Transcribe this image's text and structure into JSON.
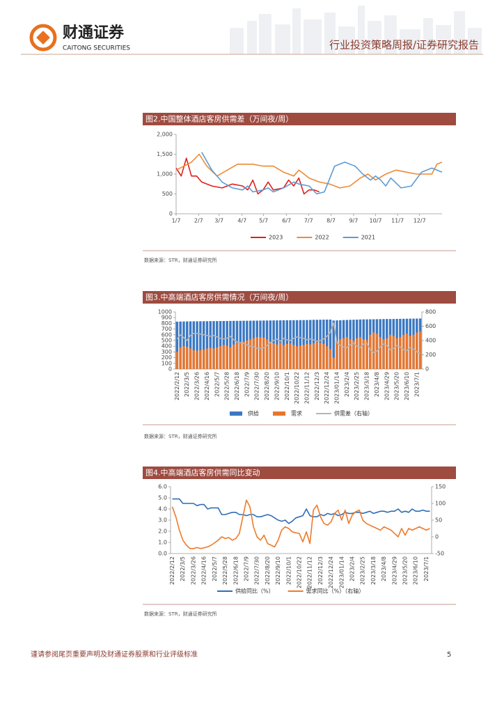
{
  "header": {
    "company_cn": "财通证券",
    "company_en": "CAITONG SECURITIES",
    "report_type": "行业投资策略周报/证券研究报告"
  },
  "chart_data": [
    {
      "type": "line",
      "title": "图2.中国整体酒店客房供需差（万间夜/周）",
      "source": "数据来源：STR，财通证券研究所",
      "xlim": [
        0,
        52
      ],
      "xticks": [
        {
          "value": 0,
          "label": "1/7"
        },
        {
          "value": 4.4,
          "label": "2/7"
        },
        {
          "value": 8.4,
          "label": "3/7"
        },
        {
          "value": 12.9,
          "label": "4/7"
        },
        {
          "value": 17.1,
          "label": "5/7"
        },
        {
          "value": 21.6,
          "label": "6/7"
        },
        {
          "value": 25.9,
          "label": "7/7"
        },
        {
          "value": 30.3,
          "label": "8/7"
        },
        {
          "value": 34.7,
          "label": "9/7"
        },
        {
          "value": 39,
          "label": "10/7"
        },
        {
          "value": 43.3,
          "label": "11/7"
        },
        {
          "value": 47.6,
          "label": "12/7"
        }
      ],
      "ylim": [
        0,
        2000
      ],
      "yticks": [
        0,
        500,
        {
          "value": 1000,
          "label": "1,000"
        },
        {
          "value": 1500,
          "label": "1,500"
        },
        {
          "value": 2000,
          "label": "2,000"
        }
      ],
      "series": [
        {
          "name": "2023",
          "color": "#e0201b",
          "x": [
            0,
            1,
            2,
            3,
            4,
            5,
            7,
            9,
            11,
            13,
            14,
            15,
            16,
            17,
            18,
            19,
            21,
            22,
            23,
            24,
            25,
            26,
            27,
            28
          ],
          "values": [
            1150,
            950,
            1400,
            950,
            950,
            800,
            700,
            650,
            750,
            700,
            600,
            850,
            500,
            600,
            800,
            600,
            650,
            850,
            700,
            900,
            500,
            600,
            600,
            550
          ]
        },
        {
          "name": "2022",
          "color": "#ee8a35",
          "x": [
            0,
            3,
            4.5,
            6,
            8,
            10,
            12,
            15,
            17,
            19,
            21,
            23,
            24,
            26,
            28,
            30,
            32,
            34,
            36,
            37.5,
            39,
            41,
            43,
            45,
            47,
            50,
            51,
            52
          ],
          "values": [
            1100,
            1300,
            1500,
            1200,
            950,
            1100,
            1250,
            1250,
            1200,
            1200,
            1050,
            950,
            1100,
            900,
            800,
            750,
            650,
            700,
            900,
            1000,
            850,
            1000,
            1100,
            1050,
            1000,
            1000,
            1250,
            1300
          ]
        },
        {
          "name": "2021",
          "color": "#5b9bd5",
          "x": [
            5,
            7,
            9,
            11,
            13,
            14,
            15,
            17,
            18,
            19,
            21,
            23,
            24,
            26,
            27.5,
            29,
            31,
            33,
            35,
            36.5,
            38,
            39,
            40,
            41,
            42,
            44,
            46,
            48,
            50,
            52
          ],
          "values": [
            1550,
            1100,
            800,
            650,
            600,
            700,
            550,
            600,
            650,
            550,
            650,
            800,
            750,
            700,
            500,
            550,
            1200,
            1300,
            1200,
            1000,
            850,
            950,
            850,
            700,
            900,
            650,
            700,
            1050,
            1150,
            1050
          ]
        }
      ]
    },
    {
      "type": "combo",
      "title": "图3.中高端酒店客房供需情况（万间夜/周）",
      "source": "数据来源：STR，财通证券研究所",
      "categories": [
        "2022/2/12",
        null,
        null,
        "2022/3/5",
        null,
        null,
        "2022/3/26",
        null,
        null,
        "2022/4/16",
        null,
        null,
        "2022/5/7",
        null,
        null,
        "2022/5/28",
        null,
        null,
        "2022/6/18",
        null,
        null,
        "2022/7/9",
        null,
        null,
        "2022/7/30",
        null,
        null,
        "2022/8/20",
        null,
        null,
        "2022/9/10",
        null,
        null,
        "2022/10/1",
        null,
        null,
        "2022/10/22",
        null,
        null,
        "2022/11/12",
        null,
        null,
        "2022/12/3",
        null,
        null,
        "2022/12/24",
        null,
        null,
        "2023/01/14",
        null,
        null,
        "2023/2/4",
        null,
        null,
        "2023/2/25",
        null,
        null,
        "2023/3/18",
        null,
        null,
        "2023/4/8",
        null,
        null,
        "2023/4/29",
        null,
        null,
        "2023/5/20",
        null,
        null,
        "2023/6/10",
        null,
        null,
        "2023/7/1",
        null
      ],
      "ylim": [
        0,
        1000
      ],
      "yticks": [
        0,
        100,
        200,
        300,
        400,
        500,
        600,
        700,
        800,
        900,
        1000
      ],
      "y2lim": [
        0,
        800
      ],
      "y2ticks": [
        0,
        200,
        400,
        600,
        800
      ],
      "series": [
        {
          "name": "供给",
          "kind": "bar",
          "color": "#3b78c3",
          "values": [
            830,
            832,
            833,
            834,
            835,
            836,
            836,
            837,
            838,
            838,
            839,
            840,
            840,
            841,
            842,
            842,
            843,
            844,
            844,
            845,
            846,
            846,
            847,
            848,
            848,
            849,
            850,
            850,
            851,
            852,
            852,
            853,
            854,
            854,
            855,
            856,
            856,
            857,
            858,
            858,
            860,
            862,
            863,
            864,
            865,
            866,
            866,
            850,
            852,
            855,
            858,
            860,
            862,
            864,
            866,
            868,
            870,
            870,
            871,
            872,
            873,
            874,
            875,
            876,
            876,
            877,
            878,
            879,
            880,
            881,
            882,
            883,
            884,
            885
          ]
        },
        {
          "name": "需求",
          "kind": "bar",
          "color": "#e8762e",
          "values": [
            300,
            380,
            400,
            390,
            360,
            330,
            320,
            330,
            340,
            360,
            370,
            360,
            380,
            400,
            420,
            410,
            380,
            430,
            460,
            470,
            480,
            500,
            520,
            540,
            560,
            560,
            550,
            520,
            480,
            450,
            430,
            460,
            420,
            440,
            450,
            420,
            400,
            410,
            420,
            440,
            430,
            450,
            470,
            460,
            440,
            400,
            350,
            200,
            480,
            520,
            540,
            560,
            520,
            500,
            540,
            560,
            520,
            510,
            600,
            640,
            620,
            560,
            520,
            540,
            600,
            580,
            540,
            560,
            600,
            620,
            580,
            600,
            640,
            660
          ]
        },
        {
          "name": "供需差（右轴）",
          "kind": "line",
          "axis": "y2",
          "color": "#b5b5b5",
          "values": [
            420,
            480,
            440,
            400,
            470,
            500,
            500,
            490,
            480,
            470,
            460,
            470,
            450,
            430,
            420,
            430,
            460,
            410,
            380,
            370,
            360,
            340,
            320,
            310,
            290,
            290,
            300,
            330,
            370,
            400,
            420,
            390,
            430,
            410,
            400,
            430,
            450,
            440,
            430,
            410,
            420,
            410,
            390,
            400,
            420,
            460,
            510,
            650,
            370,
            330,
            310,
            300,
            340,
            360,
            320,
            300,
            350,
            360,
            270,
            230,
            250,
            310,
            350,
            330,
            270,
            290,
            330,
            310,
            270,
            260,
            300,
            280,
            240,
            220
          ]
        }
      ]
    },
    {
      "type": "line",
      "title": "图4.中高端酒店客房供需同比变动",
      "source": "数据来源：STR，财通证券研究所",
      "categories": [
        "2022/2/12",
        null,
        null,
        "2022/3/5",
        null,
        null,
        "2022/3/26",
        null,
        null,
        "2022/4/16",
        null,
        null,
        "2022/5/7",
        null,
        null,
        "2022/5/28",
        null,
        null,
        "2022/6/18",
        null,
        null,
        "2022/7/9",
        null,
        null,
        "2022/7/30",
        null,
        null,
        "2022/8/20",
        null,
        null,
        "2022/9/10",
        null,
        null,
        "2022/10/1",
        null,
        null,
        "2022/10/22",
        null,
        null,
        "2022/11/12",
        null,
        null,
        "2022/12/3",
        null,
        null,
        "2022/12/24",
        null,
        null,
        "2023/01/14",
        null,
        null,
        "2023/2/4",
        null,
        null,
        "2023/2/25",
        null,
        null,
        "2023/3/18",
        null,
        null,
        "2023/4/8",
        null,
        null,
        "2023/4/29",
        null,
        null,
        "2023/5/20",
        null,
        null,
        "2023/6/10",
        null,
        null,
        "2023/7/1",
        null
      ],
      "ylim": [
        0,
        6
      ],
      "yticks": [
        {
          "value": 0,
          "label": "0.0"
        },
        {
          "value": 1,
          "label": "1.0"
        },
        {
          "value": 2,
          "label": "2.0"
        },
        {
          "value": 3,
          "label": "3.0"
        },
        {
          "value": 4,
          "label": "4.0"
        },
        {
          "value": 5,
          "label": "5.0"
        },
        {
          "value": 6,
          "label": "6.0"
        }
      ],
      "y2lim": [
        -50,
        150
      ],
      "y2ticks": [
        -50,
        0,
        50,
        100,
        150
      ],
      "series": [
        {
          "name": "供给同比（%）",
          "color": "#2e6db4",
          "values": [
            4.9,
            4.9,
            4.9,
            4.5,
            4.5,
            4.5,
            4.5,
            4.3,
            4.4,
            4.4,
            4.0,
            4.1,
            4.1,
            4.1,
            3.5,
            3.5,
            3.6,
            3.7,
            3.7,
            3.5,
            3.5,
            3.4,
            3.5,
            3.5,
            3.3,
            3.3,
            3.4,
            3.5,
            3.4,
            3.2,
            3.0,
            2.9,
            3.0,
            2.7,
            2.9,
            3.2,
            3.3,
            3.4,
            4.0,
            3.4,
            3.3,
            3.3,
            3.5,
            3.4,
            3.6,
            3.5,
            3.6,
            3.4,
            3.5,
            3.7,
            3.6,
            3.6,
            3.7,
            3.7,
            3.6,
            3.7,
            3.8,
            3.6,
            3.7,
            3.8,
            3.8,
            3.7,
            3.8,
            3.8,
            4.0,
            3.7,
            3.8,
            3.7,
            4.0,
            3.8,
            3.8,
            3.9,
            3.8,
            3.8
          ]
        },
        {
          "name": "需求同比（%）（右轴）",
          "axis": "y2",
          "color": "#ee7a2a",
          "values": [
            90,
            60,
            20,
            -10,
            -25,
            -35,
            -35,
            -32,
            -35,
            -33,
            -30,
            -25,
            -18,
            -10,
            0,
            -5,
            -2,
            -10,
            -5,
            10,
            60,
            110,
            90,
            30,
            0,
            -10,
            5,
            -20,
            -25,
            -30,
            -10,
            20,
            30,
            25,
            15,
            12,
            10,
            -15,
            15,
            -20,
            80,
            95,
            60,
            40,
            35,
            45,
            70,
            80,
            50,
            80,
            40,
            65,
            75,
            80,
            50,
            40,
            35,
            30,
            25,
            20,
            30,
            25,
            20,
            10,
            0,
            25,
            5,
            25,
            20,
            25,
            30,
            25,
            20,
            25
          ]
        }
      ]
    }
  ],
  "footer": {
    "disclaimer": "谨请参阅尾页重要声明及财通证券股票和行业评级标准",
    "page": 5
  }
}
